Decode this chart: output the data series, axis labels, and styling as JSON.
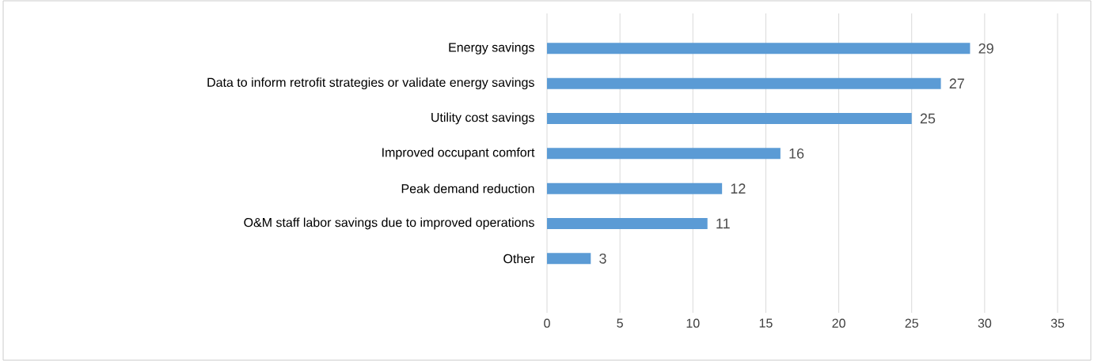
{
  "chart_data": {
    "type": "bar",
    "orientation": "horizontal",
    "categories": [
      "Energy savings",
      "Data to inform retrofit strategies or validate energy savings",
      "Utility cost savings",
      "Improved occupant comfort",
      "Peak demand reduction",
      "O&M staff labor savings due to improved operations",
      "Other"
    ],
    "values": [
      29,
      27,
      25,
      16,
      12,
      11,
      3
    ],
    "color": "#5b9bd5",
    "xlim": [
      0,
      35
    ],
    "xticks": [
      0,
      5,
      10,
      15,
      20,
      25,
      30,
      35
    ],
    "grid": "x",
    "data_labels": true
  }
}
